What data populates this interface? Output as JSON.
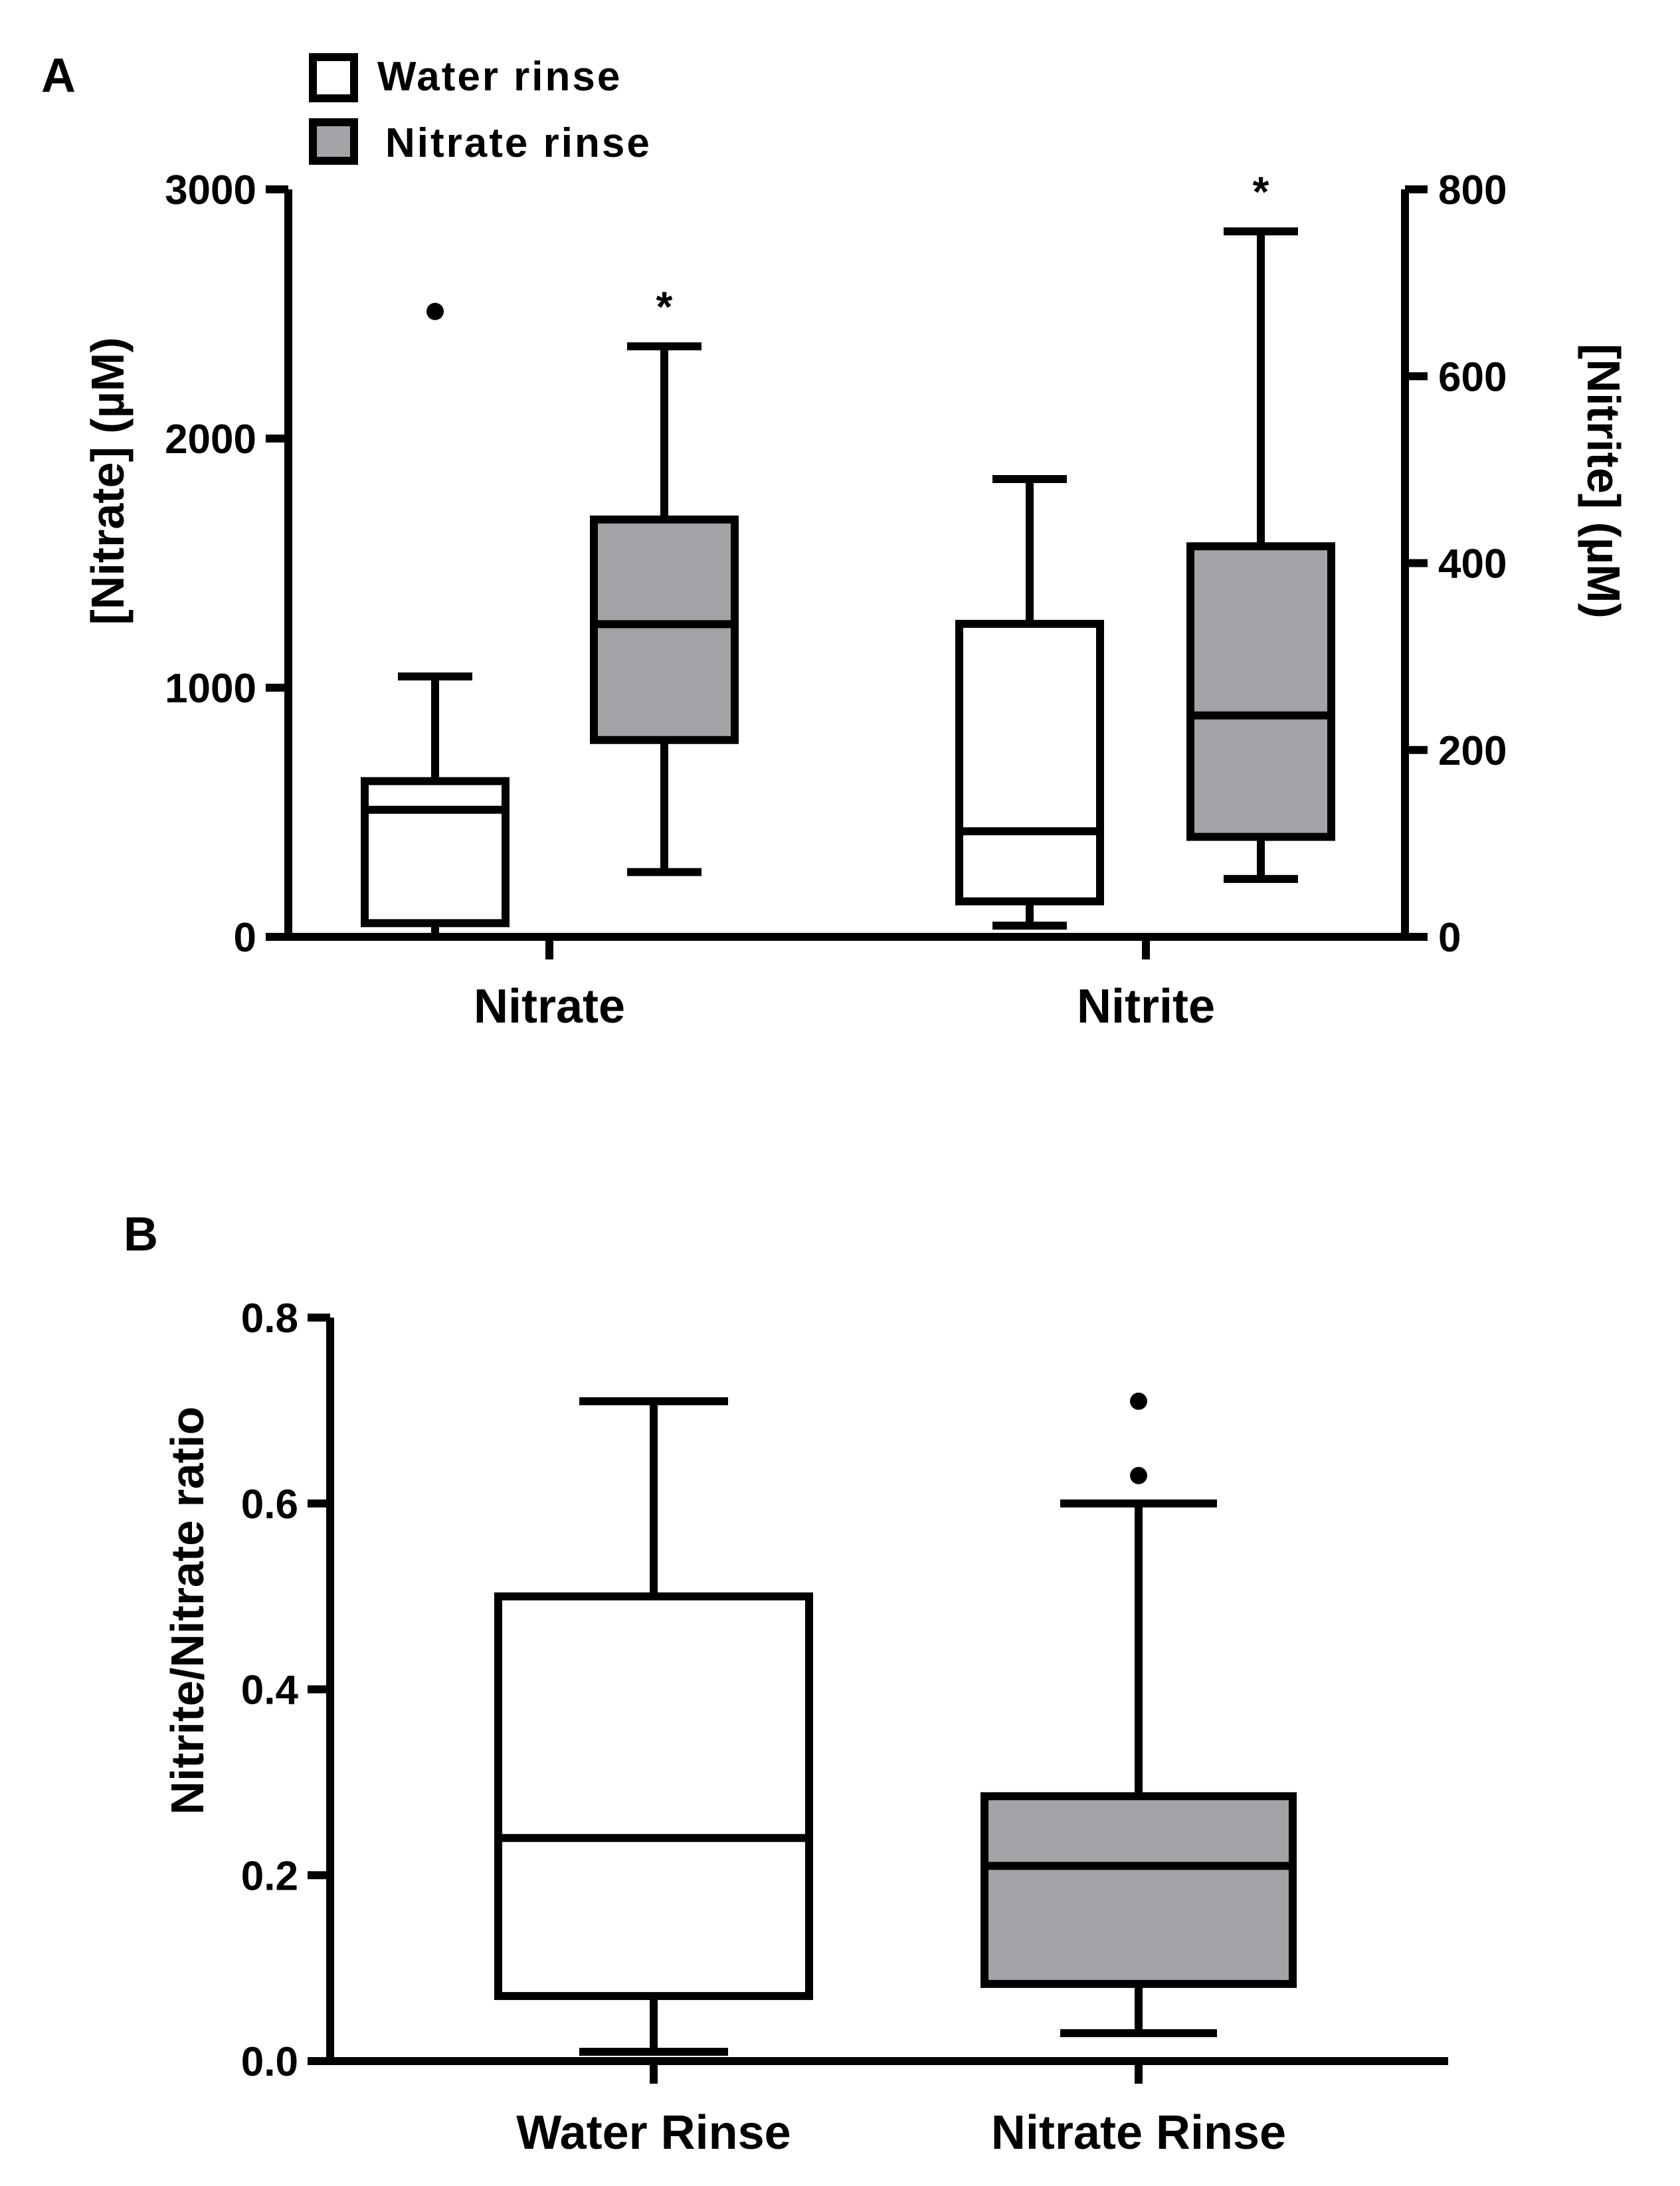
{
  "chart_data": [
    {
      "id": "A",
      "type": "box",
      "panel_label": "A",
      "legend": [
        {
          "label": "Water rinse",
          "color": "#ffffff"
        },
        {
          "label": "Nitrate rinse",
          "color": "#a3a3a7"
        }
      ],
      "left_axis": {
        "title": "[Nitrate] (µM)",
        "range": [
          0,
          3000
        ],
        "ticks": [
          0,
          1000,
          2000,
          3000
        ]
      },
      "right_axis": {
        "title": "[Nitrite] (µM)",
        "range": [
          0,
          800
        ],
        "ticks": [
          0,
          200,
          400,
          600,
          800
        ]
      },
      "categories": [
        "Nitrate",
        "Nitrite"
      ],
      "boxes": [
        {
          "category": "Nitrate",
          "group": "Water rinse",
          "axis": "left",
          "min": 0,
          "q1": 55,
          "median": 510,
          "q3": 625,
          "max": 1045,
          "outliers": [
            2510
          ],
          "significance": ""
        },
        {
          "category": "Nitrate",
          "group": "Nitrate rinse",
          "axis": "left",
          "min": 260,
          "q1": 790,
          "median": 1255,
          "q3": 1675,
          "max": 2370,
          "outliers": [],
          "significance": "*"
        },
        {
          "category": "Nitrite",
          "group": "Water rinse",
          "axis": "right",
          "min": 12,
          "q1": 38,
          "median": 113,
          "q3": 335,
          "max": 490,
          "outliers": [],
          "significance": ""
        },
        {
          "category": "Nitrite",
          "group": "Nitrate rinse",
          "axis": "right",
          "min": 62,
          "q1": 107,
          "median": 237,
          "q3": 418,
          "max": 755,
          "outliers": [],
          "significance": "*"
        }
      ]
    },
    {
      "id": "B",
      "type": "box",
      "panel_label": "B",
      "y_axis": {
        "title": "Nitrite/Nitrate ratio",
        "range": [
          0,
          0.8
        ],
        "ticks": [
          "0.0",
          "0.2",
          "0.4",
          "0.6",
          "0.8"
        ]
      },
      "categories": [
        "Water Rinse",
        "Nitrate Rinse"
      ],
      "boxes": [
        {
          "category": "Water Rinse",
          "min": 0.01,
          "q1": 0.07,
          "median": 0.24,
          "q3": 0.5,
          "max": 0.71,
          "outliers": [],
          "color": "#ffffff"
        },
        {
          "category": "Nitrate Rinse",
          "min": 0.03,
          "q1": 0.083,
          "median": 0.21,
          "q3": 0.285,
          "max": 0.6,
          "outliers": [
            0.63,
            0.71
          ],
          "color": "#a3a3a7"
        }
      ]
    }
  ]
}
